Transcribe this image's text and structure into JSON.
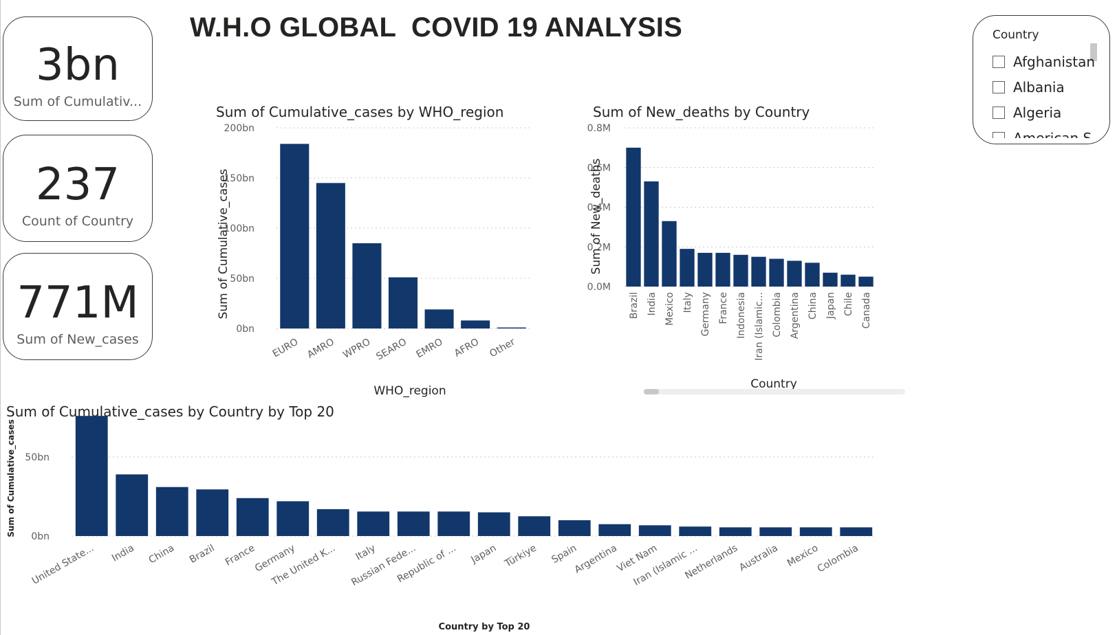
{
  "title": "W.H.O GLOBAL  COVID 19 ANALYSIS",
  "colors": {
    "bar": "#12376B",
    "card_border": "#3a3a3a",
    "grid": "#c8c8c8"
  },
  "cards": [
    {
      "value": "3bn",
      "label": "Sum of Cumulativ..."
    },
    {
      "value": "237",
      "label": "Count of Country"
    },
    {
      "value": "771M",
      "label": "Sum of New_cases"
    }
  ],
  "slicer": {
    "header": "Country",
    "items": [
      "Afghanistan",
      "Albania",
      "Algeria",
      "American S..."
    ]
  },
  "chart_data": [
    {
      "type": "bar",
      "title": "Sum of Cumulative_cases by WHO_region",
      "xlabel": "WHO_region",
      "ylabel": "Sum of Cumulative_cases",
      "categories": [
        "EURO",
        "AMRO",
        "WPRO",
        "SEARO",
        "EMRO",
        "AFRO",
        "Other"
      ],
      "values": [
        184,
        145,
        85,
        51,
        19,
        8,
        1
      ],
      "unit": "bn",
      "ylim": [
        0,
        200
      ],
      "yticks": [
        0,
        50,
        100,
        150,
        200
      ],
      "ytick_labels": [
        "0bn",
        "50bn",
        "100bn",
        "150bn",
        "200bn"
      ],
      "grid": true
    },
    {
      "type": "bar",
      "title": "Sum of New_deaths by Country",
      "xlabel": "Country",
      "ylabel": "Sum of New_deaths",
      "categories": [
        "Brazil",
        "India",
        "Mexico",
        "Italy",
        "Germany",
        "France",
        "Indonesia",
        "Iran (Islamic...",
        "Colombia",
        "Argentina",
        "China",
        "Japan",
        "Chile",
        "Canada"
      ],
      "values": [
        0.7,
        0.53,
        0.33,
        0.19,
        0.17,
        0.17,
        0.16,
        0.15,
        0.14,
        0.13,
        0.12,
        0.07,
        0.06,
        0.05
      ],
      "unit": "M",
      "ylim": [
        0,
        0.8
      ],
      "yticks": [
        0,
        0.2,
        0.4,
        0.6,
        0.8
      ],
      "ytick_labels": [
        "0.0M",
        "0.2M",
        "0.4M",
        "0.6M",
        "0.8M"
      ],
      "grid": true
    },
    {
      "type": "bar",
      "title": "Sum of Cumulative_cases by Country by Top 20",
      "xlabel": "Country by Top 20",
      "ylabel": "Sum of Cumulative_cases",
      "categories": [
        "United State...",
        "India",
        "China",
        "Brazil",
        "France",
        "Germany",
        "The United K...",
        "Italy",
        "Russian Fede...",
        "Republic of ...",
        "Japan",
        "Türkiye",
        "Spain",
        "Argentina",
        "Viet Nam",
        "Iran (Islamic ...",
        "Netherlands",
        "Australia",
        "Mexico",
        "Colombia"
      ],
      "values": [
        76,
        39,
        31,
        29.5,
        24,
        22,
        17,
        15.5,
        15.5,
        15.5,
        15,
        12.5,
        10,
        7.5,
        6.8,
        6,
        5.5,
        5.5,
        5.5,
        5.5
      ],
      "unit": "bn",
      "ylim": [
        0,
        80
      ],
      "yticks": [
        0,
        50
      ],
      "ytick_labels": [
        "0bn",
        "50bn"
      ],
      "grid": true
    }
  ]
}
